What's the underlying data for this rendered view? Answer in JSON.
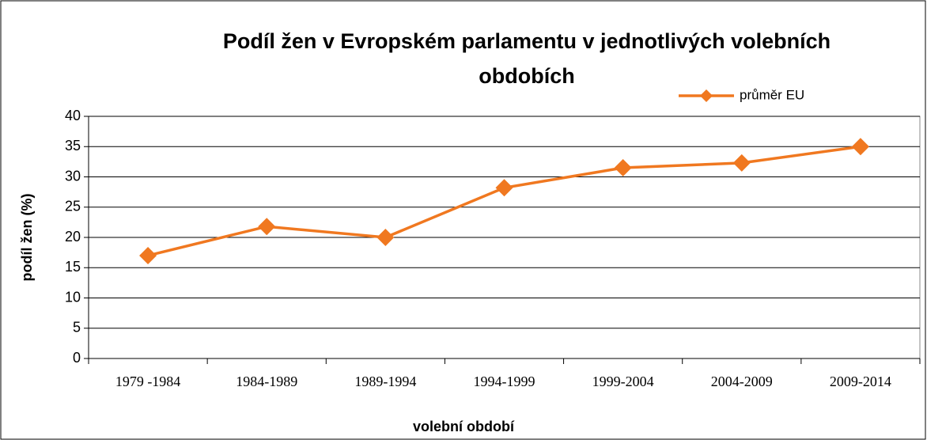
{
  "chart_data": {
    "type": "line",
    "title": "Podíl žen v Evropském parlamentu v jednotlivých volebních obdobích",
    "xlabel": "volební období",
    "ylabel": "podíl žen (%)",
    "categories": [
      "1979 -1984",
      "1984-1989",
      "1989-1994",
      "1994-1999",
      "1999-2004",
      "2004-2009",
      "2009-2014"
    ],
    "series": [
      {
        "name": "průměr EU",
        "color": "#f07820",
        "values": [
          17,
          21.8,
          20,
          28.2,
          31.5,
          32.3,
          35
        ]
      }
    ],
    "ylim": [
      0,
      40
    ],
    "yticks": [
      0,
      5,
      10,
      15,
      20,
      25,
      30,
      35,
      40
    ],
    "grid": true,
    "legend": "top-right"
  }
}
